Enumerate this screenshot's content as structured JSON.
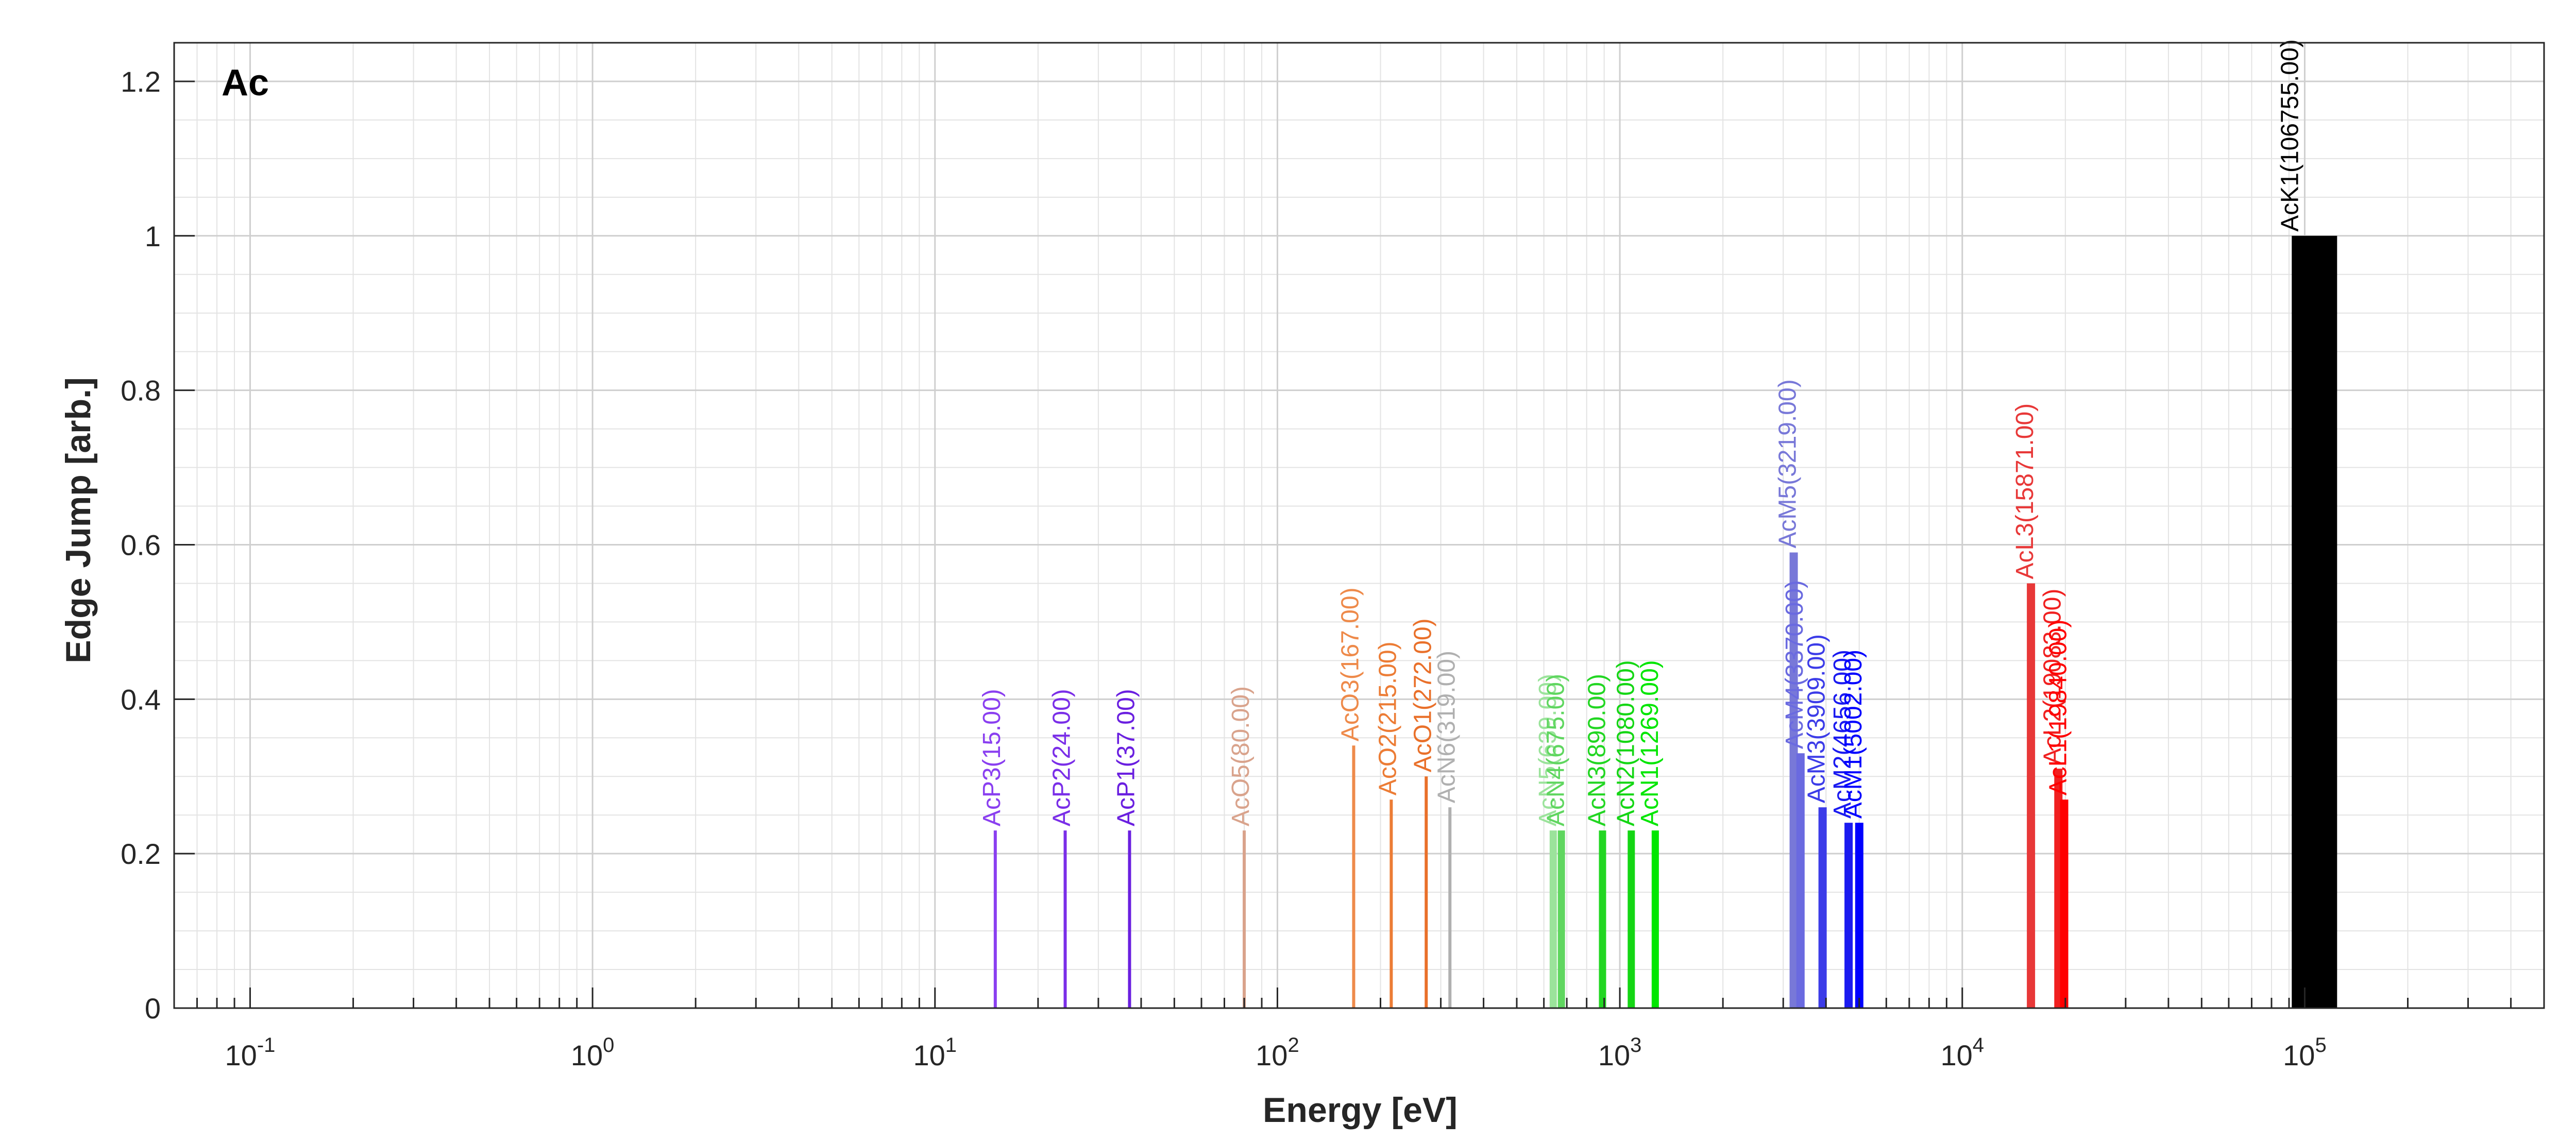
{
  "chart_data": {
    "type": "bar",
    "title": "Ac",
    "xlabel": "Energy [eV]",
    "ylabel": "Edge Jump [arb.]",
    "xscale": "log",
    "xlim": [
      0.06,
      500000
    ],
    "ylim": [
      0,
      1.25
    ],
    "grid": true,
    "x_ticks": [
      {
        "value": 0.1,
        "base": "10",
        "exp": "-1"
      },
      {
        "value": 1,
        "base": "10",
        "exp": "0"
      },
      {
        "value": 10,
        "base": "10",
        "exp": "1"
      },
      {
        "value": 100,
        "base": "10",
        "exp": "2"
      },
      {
        "value": 1000,
        "base": "10",
        "exp": "3"
      },
      {
        "value": 10000,
        "base": "10",
        "exp": "4"
      },
      {
        "value": 100000,
        "base": "10",
        "exp": "5"
      }
    ],
    "y_ticks": [
      {
        "value": 0,
        "label": "0"
      },
      {
        "value": 0.2,
        "label": "0.2"
      },
      {
        "value": 0.4,
        "label": "0.4"
      },
      {
        "value": 0.6,
        "label": "0.6"
      },
      {
        "value": 0.8,
        "label": "0.8"
      },
      {
        "value": 1,
        "label": "1"
      },
      {
        "value": 1.2,
        "label": "1.2"
      }
    ],
    "edges": [
      {
        "label": "AcP3(15.00)",
        "energy": 15.0,
        "jump": 0.23,
        "color": "#8a3ff0"
      },
      {
        "label": "AcP2(24.00)",
        "energy": 24.0,
        "jump": 0.23,
        "color": "#7a2ee8"
      },
      {
        "label": "AcP1(37.00)",
        "energy": 37.0,
        "jump": 0.23,
        "color": "#6a1fe0"
      },
      {
        "label": "AcO5(80.00)",
        "energy": 80.0,
        "jump": 0.23,
        "color": "#d9a38c"
      },
      {
        "label": "AcO3(167.00)",
        "energy": 167.0,
        "jump": 0.34,
        "color": "#ee8a4a"
      },
      {
        "label": "AcO2(215.00)",
        "energy": 215.0,
        "jump": 0.27,
        "color": "#ec7c35"
      },
      {
        "label": "AcO1(272.00)",
        "energy": 272.0,
        "jump": 0.3,
        "color": "#e9702a"
      },
      {
        "label": "AcN6(319.00)",
        "energy": 319.0,
        "jump": 0.26,
        "color": "#b0b0b0"
      },
      {
        "label": "AcN5(639.00)",
        "energy": 639.0,
        "jump": 0.23,
        "color": "#9be39b"
      },
      {
        "label": "AcN4(675.00)",
        "energy": 675.0,
        "jump": 0.23,
        "color": "#5fd65f"
      },
      {
        "label": "AcN3(890.00)",
        "energy": 890.0,
        "jump": 0.23,
        "color": "#22d622"
      },
      {
        "label": "AcN2(1080.00)",
        "energy": 1080.0,
        "jump": 0.23,
        "color": "#14d614"
      },
      {
        "label": "AcN1(1269.00)",
        "energy": 1269.0,
        "jump": 0.23,
        "color": "#00e600"
      },
      {
        "label": "AcM5(3219.00)",
        "energy": 3219.0,
        "jump": 0.59,
        "color": "#7878d8"
      },
      {
        "label": "AcM4(3370.00)",
        "energy": 3370.0,
        "jump": 0.33,
        "color": "#6a6ae0"
      },
      {
        "label": "AcM3(3909.00)",
        "energy": 3909.0,
        "jump": 0.26,
        "color": "#3c3ce8"
      },
      {
        "label": "AcM2(4656.00)",
        "energy": 4656.0,
        "jump": 0.24,
        "color": "#1a1af0"
      },
      {
        "label": "AcM1(5002.00)",
        "energy": 5002.0,
        "jump": 0.24,
        "color": "#0000ff"
      },
      {
        "label": "AcL3(15871.00)",
        "energy": 15871.0,
        "jump": 0.55,
        "color": "#e83838"
      },
      {
        "label": "AcL2(19083.00)",
        "energy": 19083.0,
        "jump": 0.31,
        "color": "#f02020"
      },
      {
        "label": "AcL1(19840.00)",
        "energy": 19840.0,
        "jump": 0.27,
        "color": "#ff0000"
      },
      {
        "label": "AcK1(106755.00)",
        "energy": 106755.0,
        "jump": 1.0,
        "color": "#000000"
      }
    ]
  }
}
